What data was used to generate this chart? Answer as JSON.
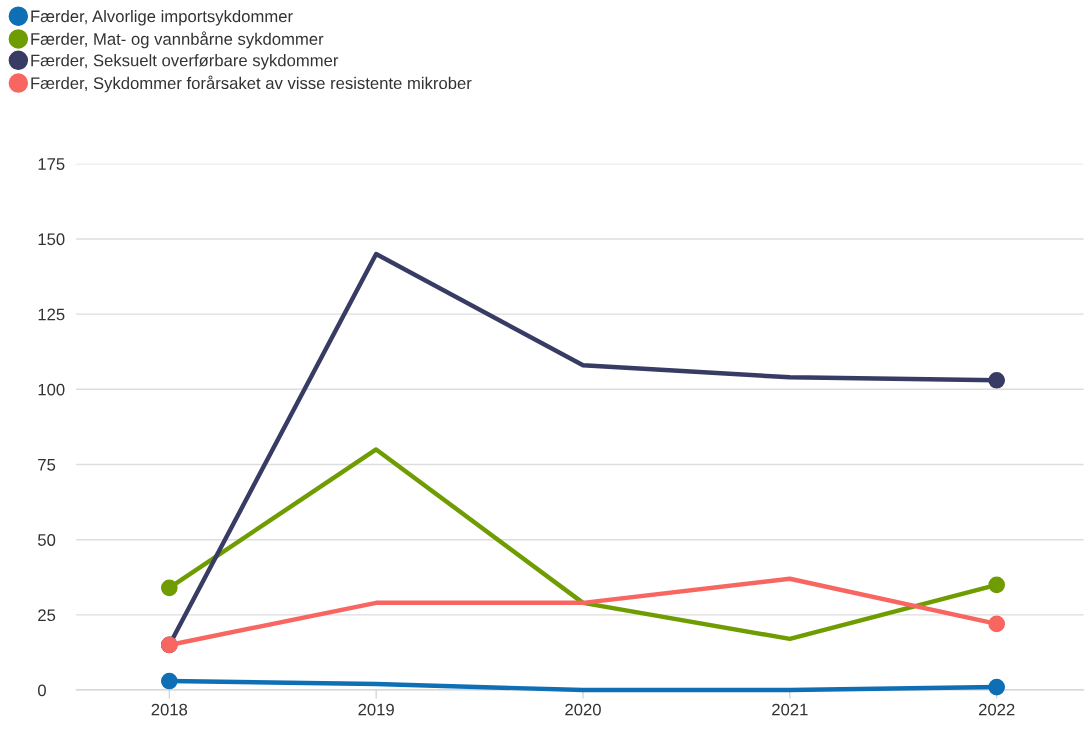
{
  "chart_data": {
    "type": "line",
    "categories": [
      "2018",
      "2019",
      "2020",
      "2021",
      "2022"
    ],
    "series": [
      {
        "name": "Færder, Alvorlige importsykdommer",
        "color": "#0f6fb5",
        "values": [
          3,
          2,
          0,
          0,
          1
        ]
      },
      {
        "name": "Færder, Mat- og vannbårne sykdommer",
        "color": "#6f9c00",
        "values": [
          34,
          80,
          29,
          17,
          35
        ]
      },
      {
        "name": "Færder, Seksuelt overførbare sykdommer",
        "color": "#383b63",
        "values": [
          15,
          145,
          108,
          104,
          103
        ]
      },
      {
        "name": "Færder, Sykdommer forårsaket av visse resistente mikrober",
        "color": "#f86661",
        "values": [
          15,
          29,
          29,
          37,
          22
        ]
      }
    ],
    "ylim": [
      0,
      175
    ],
    "yticks": [
      0,
      25,
      50,
      75,
      100,
      125,
      150,
      175
    ],
    "grid": "y",
    "legend": "top left",
    "line_style": "solid"
  }
}
